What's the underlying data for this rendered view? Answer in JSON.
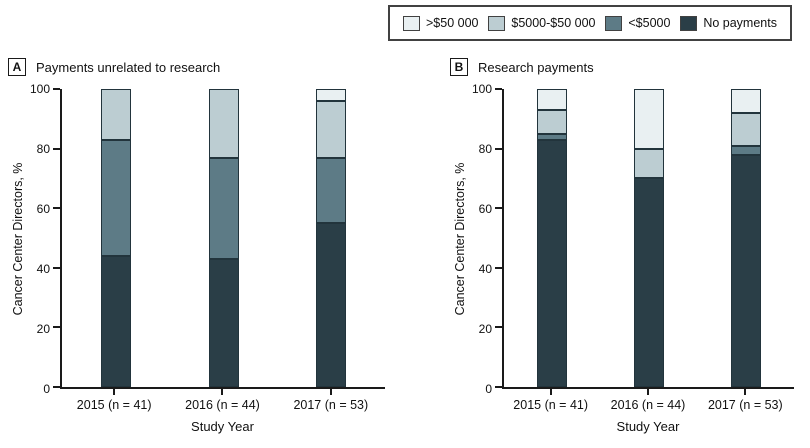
{
  "legend": {
    "border_color": "#414141",
    "items": [
      {
        "label": ">$50 000",
        "color": "#e9f0f2"
      },
      {
        "label": "$5000-$50 000",
        "color": "#bccdd2"
      },
      {
        "label": "<$5000",
        "color": "#5d7b86"
      },
      {
        "label": "No payments",
        "color": "#2a3e47"
      }
    ]
  },
  "chart_data": [
    {
      "type": "bar",
      "stacked": true,
      "panel_letter": "A",
      "title": "Payments unrelated to research",
      "categories": [
        "2015 (n = 41)",
        "2016 (n = 44)",
        "2017 (n = 53)"
      ],
      "series": [
        {
          "name": "No payments",
          "color": "#2a3e47",
          "values": [
            44,
            43,
            55
          ]
        },
        {
          "name": "<$5000",
          "color": "#5d7b86",
          "values": [
            39,
            34,
            22
          ]
        },
        {
          "name": "$5000-$50 000",
          "color": "#bccdd2",
          "values": [
            17,
            23,
            19
          ]
        },
        {
          "name": ">$50 000",
          "color": "#e9f0f2",
          "values": [
            0,
            0,
            4
          ]
        }
      ],
      "xlabel": "Study Year",
      "ylabel": "Cancer Center Directors, %",
      "ylim": [
        0,
        100
      ],
      "yticks": [
        0,
        20,
        40,
        60,
        80,
        100
      ],
      "grid": false,
      "legend_position": "top"
    },
    {
      "type": "bar",
      "stacked": true,
      "panel_letter": "B",
      "title": "Research payments",
      "categories": [
        "2015 (n = 41)",
        "2016 (n = 44)",
        "2017 (n = 53)"
      ],
      "series": [
        {
          "name": "No payments",
          "color": "#2a3e47",
          "values": [
            83,
            70,
            78
          ]
        },
        {
          "name": "<$5000",
          "color": "#5d7b86",
          "values": [
            2,
            0,
            3
          ]
        },
        {
          "name": "$5000-$50 000",
          "color": "#bccdd2",
          "values": [
            8,
            10,
            11
          ]
        },
        {
          "name": ">$50 000",
          "color": "#e9f0f2",
          "values": [
            7,
            20,
            8
          ]
        }
      ],
      "xlabel": "Study Year",
      "ylabel": "Cancer Center Directors, %",
      "ylim": [
        0,
        100
      ],
      "yticks": [
        0,
        20,
        40,
        60,
        80,
        100
      ],
      "grid": false,
      "legend_position": "top"
    }
  ]
}
